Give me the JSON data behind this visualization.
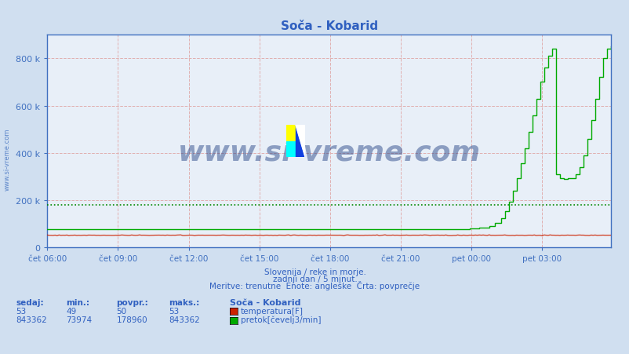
{
  "title": "Soča - Kobarid",
  "bg_color": "#d0dff0",
  "plot_bg_color": "#e8eff8",
  "grid_color": "#e0b0b0",
  "axis_color": "#4070c0",
  "title_color": "#3060c0",
  "text_color": "#3060c0",
  "arrow_color": "#cc0000",
  "avg_line_color": "#008800",
  "temp_color": "#cc2200",
  "flow_color": "#00aa00",
  "watermark_color": "#1a3a80",
  "footer_color": "#3060c0",
  "x_labels": [
    "čet 06:00",
    "čet 09:00",
    "čet 12:00",
    "čet 15:00",
    "čet 18:00",
    "čet 21:00",
    "pet 00:00",
    "pet 03:00"
  ],
  "y_max": 900000,
  "y_ticks": [
    0,
    200000,
    400000,
    600000,
    800000
  ],
  "y_tick_labels": [
    "0",
    "200 k",
    "400 k",
    "600 k",
    "800 k"
  ],
  "avg_line_value": 178960,
  "n_points": 288,
  "footer_line1": "Slovenija / reke in morje.",
  "footer_line2": "zadnji dan / 5 minut.",
  "footer_line3": "Meritve: trenutne  Enote: angleške  Črta: povprečje",
  "table_headers": [
    "sedaj:",
    "min.:",
    "povpr.:",
    "maks.:"
  ],
  "table_label": "Soča - Kobarid",
  "table_temp": [
    53,
    49,
    50,
    53
  ],
  "table_flow": [
    843362,
    73974,
    178960,
    843362
  ],
  "legend_temp": "temperatura[F]",
  "legend_flow": "pretok[čevelj3/min]",
  "watermark_text": "www.si-vreme.com",
  "sidewatermark_text": "www.si-vreme.com"
}
